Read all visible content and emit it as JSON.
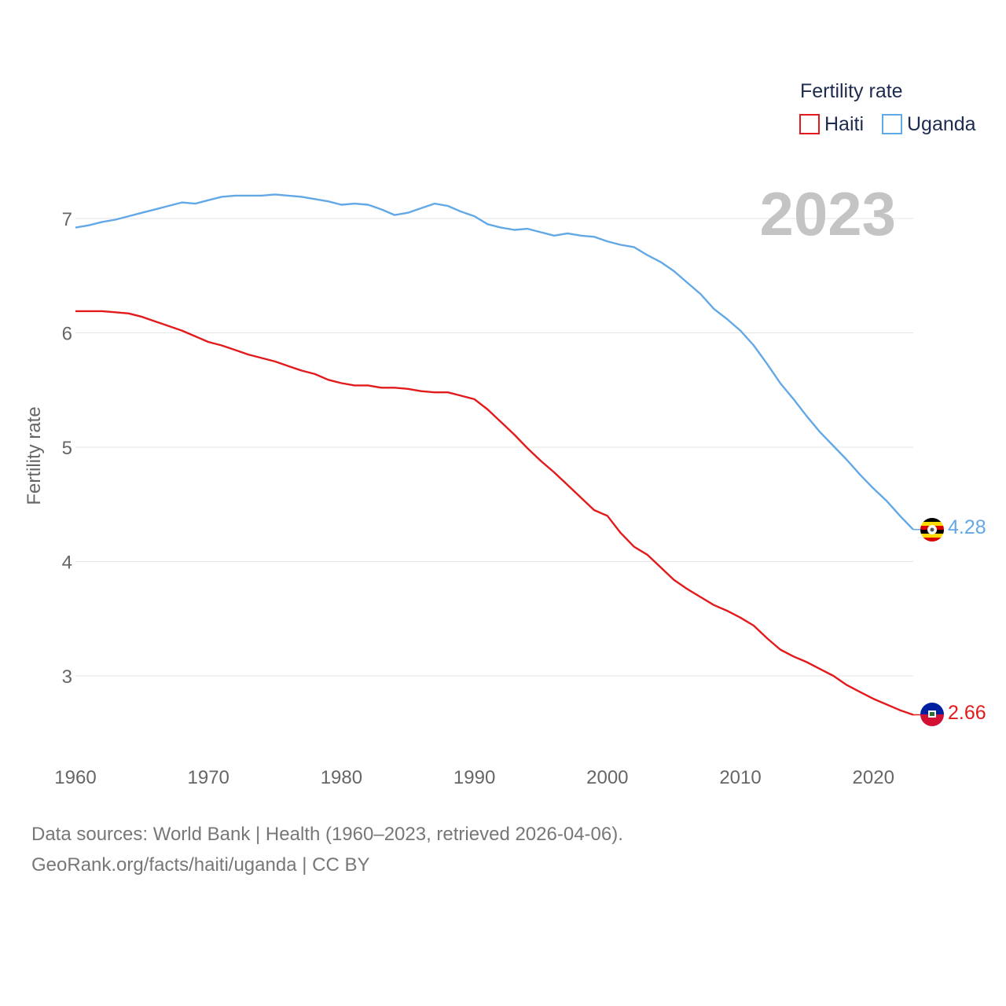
{
  "chart_data": {
    "type": "line",
    "legend_title": "Fertility rate",
    "ylabel": "Fertility rate",
    "xlabel": "",
    "year_label": "2023",
    "xlim": [
      1960,
      2023
    ],
    "ylim": [
      2.5,
      7.6
    ],
    "yticks": [
      3,
      4,
      5,
      6,
      7
    ],
    "xticks": [
      1960,
      1970,
      1980,
      1990,
      2000,
      2010,
      2020
    ],
    "legend_position": "top-right",
    "grid": true,
    "x": [
      1960,
      1961,
      1962,
      1963,
      1964,
      1965,
      1966,
      1967,
      1968,
      1969,
      1970,
      1971,
      1972,
      1973,
      1974,
      1975,
      1976,
      1977,
      1978,
      1979,
      1980,
      1981,
      1982,
      1983,
      1984,
      1985,
      1986,
      1987,
      1988,
      1989,
      1990,
      1991,
      1992,
      1993,
      1994,
      1995,
      1996,
      1997,
      1998,
      1999,
      2000,
      2001,
      2002,
      2003,
      2004,
      2005,
      2006,
      2007,
      2008,
      2009,
      2010,
      2011,
      2012,
      2013,
      2014,
      2015,
      2016,
      2017,
      2018,
      2019,
      2020,
      2021,
      2022,
      2023
    ],
    "series": [
      {
        "name": "Haiti",
        "color": "#e31a1c",
        "end_value": "2.66",
        "flag": "haiti-flag",
        "values": [
          6.19,
          6.19,
          6.19,
          6.18,
          6.17,
          6.14,
          6.1,
          6.06,
          6.02,
          5.97,
          5.92,
          5.89,
          5.85,
          5.81,
          5.78,
          5.75,
          5.71,
          5.67,
          5.64,
          5.59,
          5.56,
          5.54,
          5.54,
          5.52,
          5.52,
          5.51,
          5.49,
          5.48,
          5.48,
          5.45,
          5.42,
          5.33,
          5.22,
          5.11,
          4.99,
          4.88,
          4.78,
          4.67,
          4.56,
          4.45,
          4.4,
          4.25,
          4.13,
          4.06,
          3.95,
          3.84,
          3.76,
          3.69,
          3.62,
          3.57,
          3.51,
          3.44,
          3.33,
          3.23,
          3.17,
          3.12,
          3.06,
          3.0,
          2.92,
          2.86,
          2.8,
          2.75,
          2.7,
          2.66
        ]
      },
      {
        "name": "Uganda",
        "color": "#63a8e6",
        "end_value": "4.28",
        "flag": "uganda-flag",
        "values": [
          6.92,
          6.94,
          6.97,
          6.99,
          7.02,
          7.05,
          7.08,
          7.11,
          7.14,
          7.13,
          7.16,
          7.19,
          7.2,
          7.2,
          7.2,
          7.21,
          7.2,
          7.19,
          7.17,
          7.15,
          7.12,
          7.13,
          7.12,
          7.08,
          7.03,
          7.05,
          7.09,
          7.13,
          7.11,
          7.06,
          7.02,
          6.95,
          6.92,
          6.9,
          6.91,
          6.88,
          6.85,
          6.87,
          6.85,
          6.84,
          6.8,
          6.77,
          6.75,
          6.68,
          6.62,
          6.54,
          6.44,
          6.34,
          6.21,
          6.12,
          6.02,
          5.89,
          5.73,
          5.56,
          5.42,
          5.27,
          5.13,
          5.01,
          4.89,
          4.76,
          4.64,
          4.53,
          4.4,
          4.28
        ]
      }
    ]
  },
  "footer": {
    "line1": "Data sources: World Bank | Health (1960–2023, retrieved 2026-04-06).",
    "line2": "GeoRank.org/facts/haiti/uganda | CC BY"
  }
}
